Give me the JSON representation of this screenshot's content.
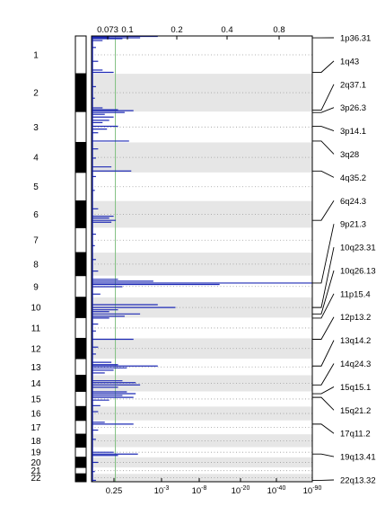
{
  "chart_data": {
    "type": "genome-wide-plot",
    "top_axis": {
      "ticks": [
        {
          "label": "0.073",
          "value": 0.073
        },
        {
          "label": "0.1",
          "value": 0.1
        },
        {
          "label": "0.2",
          "value": 0.2
        },
        {
          "label": "0.4",
          "value": 0.4
        },
        {
          "label": "0.8",
          "value": 0.8
        }
      ],
      "range": [
        0,
        1
      ]
    },
    "bottom_axis": {
      "ticks": [
        {
          "label": "0.25",
          "value": 0.25
        },
        {
          "label": "10",
          "sup": "-3"
        },
        {
          "label": "10",
          "sup": "-8"
        },
        {
          "label": "10",
          "sup": "-20"
        },
        {
          "label": "10",
          "sup": "-40"
        },
        {
          "label": "10",
          "sup": "-90"
        }
      ]
    },
    "threshold_line": {
      "value": 0.25,
      "color": "#7fbf7f"
    },
    "series_color": "#1f2bb5",
    "chromosomes": [
      {
        "label": "1",
        "start": 0,
        "end": 8.2
      },
      {
        "label": "2",
        "start": 8.2,
        "end": 16.4
      },
      {
        "label": "3",
        "start": 16.4,
        "end": 23.1
      },
      {
        "label": "4",
        "start": 23.1,
        "end": 29.6
      },
      {
        "label": "5",
        "start": 29.6,
        "end": 35.8
      },
      {
        "label": "6",
        "start": 35.8,
        "end": 41.6
      },
      {
        "label": "7",
        "start": 41.6,
        "end": 47.0
      },
      {
        "label": "8",
        "start": 47.0,
        "end": 52.0
      },
      {
        "label": "9",
        "start": 52.0,
        "end": 56.7
      },
      {
        "label": "10",
        "start": 56.7,
        "end": 61.1
      },
      {
        "label": "11",
        "start": 61.1,
        "end": 65.6
      },
      {
        "label": "12",
        "start": 65.6,
        "end": 70.0
      },
      {
        "label": "13",
        "start": 70.0,
        "end": 73.6
      },
      {
        "label": "14",
        "start": 73.6,
        "end": 77.1
      },
      {
        "label": "15",
        "start": 77.1,
        "end": 80.4
      },
      {
        "label": "16",
        "start": 80.4,
        "end": 83.4
      },
      {
        "label": "17",
        "start": 83.4,
        "end": 86.4
      },
      {
        "label": "18",
        "start": 86.4,
        "end": 89.2
      },
      {
        "label": "19",
        "start": 89.2,
        "end": 91.4
      },
      {
        "label": "20",
        "start": 91.4,
        "end": 93.6
      },
      {
        "label": "21",
        "start": 93.6,
        "end": 95.0
      },
      {
        "label": "22",
        "start": 95.0,
        "end": 96.7
      }
    ],
    "peak_labels": [
      {
        "label": "1p36.31",
        "pos": 0.4
      },
      {
        "label": "1q43",
        "pos": 7.9
      },
      {
        "label": "2q37.1",
        "pos": 16.1
      },
      {
        "label": "3p26.3",
        "pos": 16.6
      },
      {
        "label": "3p14.1",
        "pos": 19.6
      },
      {
        "label": "3q28",
        "pos": 22.8
      },
      {
        "label": "4q35.2",
        "pos": 29.3
      },
      {
        "label": "6q24.3",
        "pos": 40.0
      },
      {
        "label": "9p21.3",
        "pos": 53.6
      },
      {
        "label": "10q23.31",
        "pos": 58.9
      },
      {
        "label": "10q26.13",
        "pos": 60.3
      },
      {
        "label": "11p15.4",
        "pos": 61.2
      },
      {
        "label": "12p13.2",
        "pos": 65.8
      },
      {
        "label": "13q14.2",
        "pos": 71.6
      },
      {
        "label": "14q24.3",
        "pos": 75.7
      },
      {
        "label": "15q15.1",
        "pos": 77.6
      },
      {
        "label": "15q21.2",
        "pos": 78.4
      },
      {
        "label": "17q11.2",
        "pos": 84.2
      },
      {
        "label": "19q13.41",
        "pos": 90.7
      },
      {
        "label": "22q13.32",
        "pos": 96.4
      }
    ],
    "peaks": [
      {
        "pos": 0.1,
        "v": 0.3
      },
      {
        "pos": 0.2,
        "v": 0.08
      },
      {
        "pos": 0.4,
        "v": 0.22
      },
      {
        "pos": 0.6,
        "v": 0.14
      },
      {
        "pos": 1.0,
        "v": 0.05
      },
      {
        "pos": 2.5,
        "v": 0.02
      },
      {
        "pos": 5.5,
        "v": 0.03
      },
      {
        "pos": 7.4,
        "v": 0.05
      },
      {
        "pos": 7.9,
        "v": 0.1
      },
      {
        "pos": 11.0,
        "v": 0.02
      },
      {
        "pos": 13.5,
        "v": 0.015
      },
      {
        "pos": 15.6,
        "v": 0.05
      },
      {
        "pos": 16.0,
        "v": 0.12
      },
      {
        "pos": 16.2,
        "v": 0.19
      },
      {
        "pos": 16.6,
        "v": 0.15
      },
      {
        "pos": 17.0,
        "v": 0.06
      },
      {
        "pos": 17.6,
        "v": 0.1
      },
      {
        "pos": 18.3,
        "v": 0.08
      },
      {
        "pos": 18.8,
        "v": 0.05
      },
      {
        "pos": 19.6,
        "v": 0.12
      },
      {
        "pos": 20.2,
        "v": 0.07
      },
      {
        "pos": 21.0,
        "v": 0.03
      },
      {
        "pos": 22.8,
        "v": 0.17
      },
      {
        "pos": 24.5,
        "v": 0.03
      },
      {
        "pos": 26.5,
        "v": 0.02
      },
      {
        "pos": 28.4,
        "v": 0.09
      },
      {
        "pos": 29.3,
        "v": 0.18
      },
      {
        "pos": 30.5,
        "v": 0.02
      },
      {
        "pos": 33.5,
        "v": 0.015
      },
      {
        "pos": 37.5,
        "v": 0.03
      },
      {
        "pos": 39.1,
        "v": 0.1
      },
      {
        "pos": 39.5,
        "v": 0.08
      },
      {
        "pos": 40.0,
        "v": 0.11
      },
      {
        "pos": 40.4,
        "v": 0.09
      },
      {
        "pos": 43.0,
        "v": 0.02
      },
      {
        "pos": 45.5,
        "v": 0.015
      },
      {
        "pos": 48.5,
        "v": 0.02
      },
      {
        "pos": 51.0,
        "v": 0.03
      },
      {
        "pos": 52.8,
        "v": 0.12
      },
      {
        "pos": 53.2,
        "v": 0.28
      },
      {
        "pos": 53.6,
        "v": 1.0
      },
      {
        "pos": 53.9,
        "v": 0.58
      },
      {
        "pos": 54.4,
        "v": 0.14
      },
      {
        "pos": 56.0,
        "v": 0.04
      },
      {
        "pos": 58.3,
        "v": 0.3
      },
      {
        "pos": 58.9,
        "v": 0.38
      },
      {
        "pos": 59.4,
        "v": 0.12
      },
      {
        "pos": 59.8,
        "v": 0.08
      },
      {
        "pos": 60.3,
        "v": 0.22
      },
      {
        "pos": 60.8,
        "v": 0.15
      },
      {
        "pos": 61.2,
        "v": 0.08
      },
      {
        "pos": 62.5,
        "v": 0.03
      },
      {
        "pos": 64.0,
        "v": 0.02
      },
      {
        "pos": 65.8,
        "v": 0.19
      },
      {
        "pos": 67.5,
        "v": 0.03
      },
      {
        "pos": 69.0,
        "v": 0.02
      },
      {
        "pos": 70.8,
        "v": 0.09
      },
      {
        "pos": 71.3,
        "v": 0.12
      },
      {
        "pos": 71.6,
        "v": 0.3
      },
      {
        "pos": 72.0,
        "v": 0.16
      },
      {
        "pos": 72.5,
        "v": 0.1
      },
      {
        "pos": 73.1,
        "v": 0.06
      },
      {
        "pos": 74.8,
        "v": 0.14
      },
      {
        "pos": 75.2,
        "v": 0.2
      },
      {
        "pos": 75.7,
        "v": 0.22
      },
      {
        "pos": 76.2,
        "v": 0.12
      },
      {
        "pos": 77.2,
        "v": 0.16
      },
      {
        "pos": 77.6,
        "v": 0.2
      },
      {
        "pos": 78.0,
        "v": 0.14
      },
      {
        "pos": 78.4,
        "v": 0.19
      },
      {
        "pos": 79.0,
        "v": 0.08
      },
      {
        "pos": 80.2,
        "v": 0.04
      },
      {
        "pos": 81.5,
        "v": 0.03
      },
      {
        "pos": 83.8,
        "v": 0.06
      },
      {
        "pos": 84.2,
        "v": 0.19
      },
      {
        "pos": 85.5,
        "v": 0.03
      },
      {
        "pos": 87.5,
        "v": 0.02
      },
      {
        "pos": 90.3,
        "v": 0.1
      },
      {
        "pos": 90.7,
        "v": 0.21
      },
      {
        "pos": 91.0,
        "v": 0.12
      },
      {
        "pos": 92.5,
        "v": 0.03
      },
      {
        "pos": 94.5,
        "v": 0.015
      },
      {
        "pos": 96.4,
        "v": 0.02
      }
    ]
  }
}
